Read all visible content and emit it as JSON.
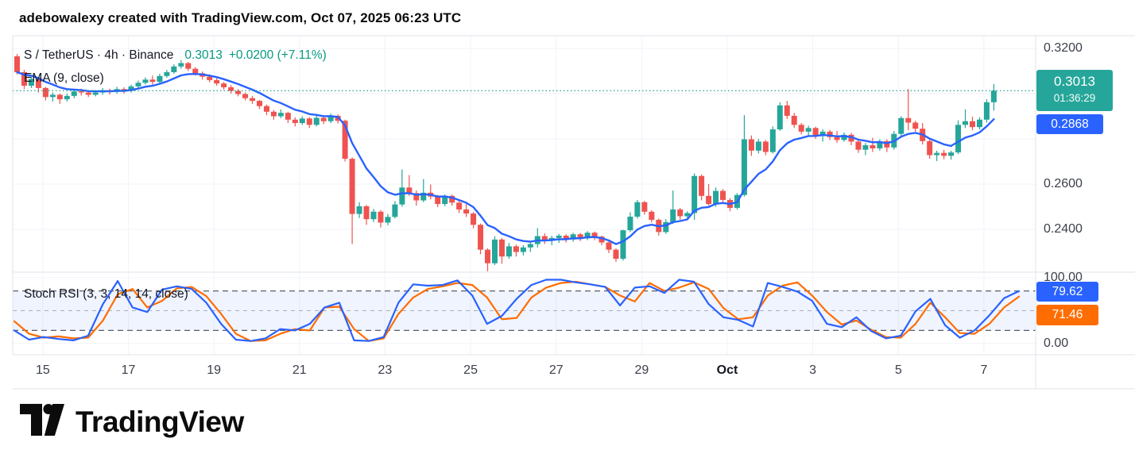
{
  "header": {
    "text": "adebowalexy created with TradingView.com, Oct 07, 2025 06:23 UTC"
  },
  "legend": {
    "symbol": "S / TetherUS · 4h · Binance",
    "last_price": "0.3013",
    "change": "+0.0200 (+7.11%)",
    "overlay_label": "EMA (9, close)"
  },
  "indicator_label": "Stoch RSI (3, 3, 14, 14, close)",
  "price_scale": {
    "ticks": [
      {
        "text": "0.3200",
        "value": 0.32
      },
      {
        "text": "0.2600",
        "value": 0.26
      },
      {
        "text": "0.2400",
        "value": 0.24
      }
    ],
    "price_badge": {
      "price": "0.3013",
      "countdown": "01:36:29",
      "color": "#26A69A"
    },
    "ema_badge": {
      "price": "0.2868",
      "color": "#2962FF"
    }
  },
  "stoch_scale": {
    "ticks": [
      {
        "text": "100.00",
        "value": 100
      },
      {
        "text": "0.00",
        "value": 0
      }
    ],
    "k_badge": {
      "value": "79.62",
      "color": "#2962FF"
    },
    "d_badge": {
      "value": "71.46",
      "color": "#FF6D00"
    }
  },
  "footer": {
    "brand": "TradingView"
  },
  "colors": {
    "up": "#26A69A",
    "down": "#EF5350",
    "ema": "#2962FF",
    "stoch_k": "#2962FF",
    "stoch_d": "#FF6D00",
    "grid": "#F0F3FA",
    "border": "#E0E3EB",
    "stoch_band": "rgba(41,98,255,0.07)",
    "dash_strong": "#5A5E69",
    "dash_mid": "#A9AEB8",
    "price_line": "#089981",
    "axis_text": "#3C404B"
  },
  "chart_data": {
    "type": "candlestick",
    "title": "S / TetherUS · 4h · Binance",
    "symbol": "S / TetherUS",
    "interval": "4h",
    "exchange": "Binance",
    "last_price": 0.3013,
    "change": 0.02,
    "change_pct": 7.11,
    "price_gridlines": [
      0.32,
      0.3,
      0.28,
      0.26,
      0.24
    ],
    "visible_price_range": [
      0.2215,
      0.326
    ],
    "time_ticks": [
      {
        "label": "15",
        "index": 4
      },
      {
        "label": "17",
        "index": 16
      },
      {
        "label": "19",
        "index": 28
      },
      {
        "label": "21",
        "index": 40
      },
      {
        "label": "23",
        "index": 52
      },
      {
        "label": "25",
        "index": 64
      },
      {
        "label": "27",
        "index": 76
      },
      {
        "label": "29",
        "index": 88
      },
      {
        "label": "Oct",
        "index": 100,
        "emphasis": true
      },
      {
        "label": "3",
        "index": 112
      },
      {
        "label": "5",
        "index": 124
      },
      {
        "label": "7",
        "index": 136
      }
    ],
    "candles": [
      [
        0.3165,
        0.3175,
        0.3085,
        0.3095
      ],
      [
        0.3095,
        0.3105,
        0.302,
        0.3035
      ],
      [
        0.3035,
        0.3075,
        0.3025,
        0.3065
      ],
      [
        0.3065,
        0.307,
        0.3005,
        0.3025
      ],
      [
        0.3025,
        0.303,
        0.297,
        0.2985
      ],
      [
        0.2985,
        0.3005,
        0.2965,
        0.2995
      ],
      [
        0.2995,
        0.3,
        0.2955,
        0.2975
      ],
      [
        0.2975,
        0.3,
        0.2965,
        0.299
      ],
      [
        0.299,
        0.302,
        0.298,
        0.301
      ],
      [
        0.301,
        0.3022,
        0.2992,
        0.3005
      ],
      [
        0.3005,
        0.3015,
        0.2985,
        0.2995
      ],
      [
        0.2995,
        0.3015,
        0.2988,
        0.3005
      ],
      [
        0.3005,
        0.3025,
        0.2995,
        0.3015
      ],
      [
        0.3015,
        0.3022,
        0.2996,
        0.3008
      ],
      [
        0.3008,
        0.303,
        0.3,
        0.302
      ],
      [
        0.302,
        0.3028,
        0.3,
        0.3012
      ],
      [
        0.3012,
        0.304,
        0.3005,
        0.3032
      ],
      [
        0.3032,
        0.3058,
        0.3025,
        0.3048
      ],
      [
        0.3048,
        0.3072,
        0.304,
        0.3062
      ],
      [
        0.3062,
        0.308,
        0.304,
        0.3052
      ],
      [
        0.3052,
        0.3088,
        0.3045,
        0.3078
      ],
      [
        0.3078,
        0.3105,
        0.307,
        0.3095
      ],
      [
        0.3095,
        0.313,
        0.3088,
        0.312
      ],
      [
        0.312,
        0.3148,
        0.311,
        0.3135
      ],
      [
        0.3135,
        0.314,
        0.31,
        0.311
      ],
      [
        0.311,
        0.3118,
        0.308,
        0.309
      ],
      [
        0.309,
        0.3098,
        0.3062,
        0.3075
      ],
      [
        0.3075,
        0.3085,
        0.305,
        0.306
      ],
      [
        0.306,
        0.3068,
        0.3035,
        0.3045
      ],
      [
        0.3045,
        0.3052,
        0.3018,
        0.3028
      ],
      [
        0.3028,
        0.3038,
        0.3,
        0.3012
      ],
      [
        0.3012,
        0.302,
        0.2988,
        0.2998
      ],
      [
        0.2998,
        0.3005,
        0.297,
        0.298
      ],
      [
        0.298,
        0.299,
        0.2955,
        0.2968
      ],
      [
        0.2968,
        0.2972,
        0.2932,
        0.2945
      ],
      [
        0.2945,
        0.2952,
        0.2905,
        0.292
      ],
      [
        0.292,
        0.2928,
        0.2885,
        0.29
      ],
      [
        0.29,
        0.293,
        0.2892,
        0.2915
      ],
      [
        0.2915,
        0.292,
        0.287,
        0.2885
      ],
      [
        0.2885,
        0.2895,
        0.2855,
        0.287
      ],
      [
        0.287,
        0.29,
        0.2862,
        0.289
      ],
      [
        0.289,
        0.2896,
        0.2848,
        0.2862
      ],
      [
        0.2862,
        0.2905,
        0.2855,
        0.2893
      ],
      [
        0.2893,
        0.29,
        0.2865,
        0.2878
      ],
      [
        0.2878,
        0.2912,
        0.287,
        0.2902
      ],
      [
        0.2902,
        0.2908,
        0.2868,
        0.288
      ],
      [
        0.288,
        0.2885,
        0.27,
        0.2712
      ],
      [
        0.2712,
        0.2718,
        0.2335,
        0.2468
      ],
      [
        0.2468,
        0.252,
        0.245,
        0.2502
      ],
      [
        0.2502,
        0.2508,
        0.242,
        0.2445
      ],
      [
        0.2445,
        0.249,
        0.2432,
        0.2478
      ],
      [
        0.2478,
        0.2485,
        0.2408,
        0.243
      ],
      [
        0.243,
        0.2468,
        0.2418,
        0.2455
      ],
      [
        0.2455,
        0.2525,
        0.2448,
        0.251
      ],
      [
        0.251,
        0.2665,
        0.25,
        0.2585
      ],
      [
        0.2585,
        0.264,
        0.2548,
        0.256
      ],
      [
        0.256,
        0.2572,
        0.2505,
        0.2528
      ],
      [
        0.2528,
        0.2622,
        0.252,
        0.2562
      ],
      [
        0.2562,
        0.2598,
        0.2532,
        0.2545
      ],
      [
        0.2545,
        0.2552,
        0.2498,
        0.2512
      ],
      [
        0.2512,
        0.2555,
        0.2502,
        0.2548
      ],
      [
        0.2548,
        0.2554,
        0.2505,
        0.2518
      ],
      [
        0.2518,
        0.2526,
        0.2472,
        0.2488
      ],
      [
        0.2488,
        0.2512,
        0.2455,
        0.247
      ],
      [
        0.247,
        0.2476,
        0.2405,
        0.242
      ],
      [
        0.242,
        0.2426,
        0.229,
        0.231
      ],
      [
        0.231,
        0.2316,
        0.2215,
        0.225
      ],
      [
        0.225,
        0.237,
        0.2242,
        0.2355
      ],
      [
        0.2355,
        0.2362,
        0.2248,
        0.228
      ],
      [
        0.228,
        0.234,
        0.227,
        0.2325
      ],
      [
        0.2325,
        0.2332,
        0.228,
        0.23
      ],
      [
        0.23,
        0.233,
        0.2285,
        0.232
      ],
      [
        0.232,
        0.2345,
        0.23,
        0.2335
      ],
      [
        0.2335,
        0.2405,
        0.232,
        0.237
      ],
      [
        0.237,
        0.2382,
        0.2335,
        0.235
      ],
      [
        0.235,
        0.2372,
        0.233,
        0.2362
      ],
      [
        0.2362,
        0.238,
        0.234,
        0.2372
      ],
      [
        0.2372,
        0.2378,
        0.2342,
        0.2355
      ],
      [
        0.2355,
        0.2385,
        0.2345,
        0.2378
      ],
      [
        0.2378,
        0.2384,
        0.2348,
        0.236
      ],
      [
        0.236,
        0.2392,
        0.2352,
        0.2385
      ],
      [
        0.2385,
        0.239,
        0.2352,
        0.2368
      ],
      [
        0.2368,
        0.2372,
        0.233,
        0.2342
      ],
      [
        0.2342,
        0.2348,
        0.2295,
        0.231
      ],
      [
        0.231,
        0.2316,
        0.2256,
        0.227
      ],
      [
        0.227,
        0.2398,
        0.2262,
        0.2396
      ],
      [
        0.2396,
        0.2475,
        0.2388,
        0.2456
      ],
      [
        0.2456,
        0.253,
        0.2448,
        0.252
      ],
      [
        0.252,
        0.2526,
        0.2465,
        0.2478
      ],
      [
        0.2478,
        0.2484,
        0.243,
        0.2442
      ],
      [
        0.2442,
        0.2448,
        0.2372,
        0.2388
      ],
      [
        0.2388,
        0.2445,
        0.238,
        0.2432
      ],
      [
        0.2432,
        0.2572,
        0.2424,
        0.2488
      ],
      [
        0.2488,
        0.2495,
        0.2442,
        0.2458
      ],
      [
        0.2458,
        0.248,
        0.245,
        0.2472
      ],
      [
        0.2472,
        0.2648,
        0.2442,
        0.2636
      ],
      [
        0.2636,
        0.2642,
        0.2528,
        0.2548
      ],
      [
        0.2548,
        0.26,
        0.2505,
        0.2512
      ],
      [
        0.2512,
        0.2585,
        0.25,
        0.257
      ],
      [
        0.257,
        0.2578,
        0.2512,
        0.253
      ],
      [
        0.253,
        0.2538,
        0.248,
        0.2495
      ],
      [
        0.2495,
        0.256,
        0.2488,
        0.2552
      ],
      [
        0.2552,
        0.2905,
        0.2545,
        0.2798
      ],
      [
        0.2798,
        0.2815,
        0.2725,
        0.2748
      ],
      [
        0.2748,
        0.28,
        0.2735,
        0.2788
      ],
      [
        0.2788,
        0.2795,
        0.2728,
        0.2742
      ],
      [
        0.2742,
        0.2855,
        0.2735,
        0.2842
      ],
      [
        0.2842,
        0.2962,
        0.2835,
        0.2948
      ],
      [
        0.2948,
        0.2968,
        0.2888,
        0.2902
      ],
      [
        0.2902,
        0.2915,
        0.2848,
        0.2862
      ],
      [
        0.2862,
        0.287,
        0.282,
        0.2832
      ],
      [
        0.2832,
        0.2858,
        0.2812,
        0.2848
      ],
      [
        0.2848,
        0.2854,
        0.28,
        0.2815
      ],
      [
        0.2815,
        0.2842,
        0.2788,
        0.2832
      ],
      [
        0.2832,
        0.284,
        0.2795,
        0.2808
      ],
      [
        0.2808,
        0.2835,
        0.2782,
        0.2795
      ],
      [
        0.2795,
        0.2828,
        0.2788,
        0.2818
      ],
      [
        0.2818,
        0.2826,
        0.2772,
        0.2788
      ],
      [
        0.2788,
        0.2795,
        0.2738,
        0.2752
      ],
      [
        0.2752,
        0.2782,
        0.2728,
        0.2772
      ],
      [
        0.2772,
        0.2805,
        0.2742,
        0.2758
      ],
      [
        0.2758,
        0.2798,
        0.2748,
        0.279
      ],
      [
        0.279,
        0.2798,
        0.2742,
        0.2762
      ],
      [
        0.2762,
        0.2835,
        0.2752,
        0.2822
      ],
      [
        0.2822,
        0.29,
        0.2812,
        0.2892
      ],
      [
        0.2892,
        0.302,
        0.2838,
        0.2872
      ],
      [
        0.2872,
        0.288,
        0.2832,
        0.2845
      ],
      [
        0.2845,
        0.287,
        0.2775,
        0.279
      ],
      [
        0.279,
        0.2798,
        0.2712,
        0.2728
      ],
      [
        0.2728,
        0.2748,
        0.2702,
        0.2738
      ],
      [
        0.2738,
        0.2752,
        0.271,
        0.2725
      ],
      [
        0.2725,
        0.2748,
        0.2708,
        0.274
      ],
      [
        0.274,
        0.2882,
        0.2732,
        0.2862
      ],
      [
        0.2862,
        0.293,
        0.2848,
        0.2878
      ],
      [
        0.2878,
        0.2898,
        0.2838,
        0.2852
      ],
      [
        0.2852,
        0.2895,
        0.2842,
        0.2885
      ],
      [
        0.2885,
        0.2975,
        0.2872,
        0.2962
      ],
      [
        0.2962,
        0.3042,
        0.2925,
        0.3013
      ]
    ],
    "overlays": [
      {
        "name": "EMA",
        "params": "9, close",
        "color": "#2962FF",
        "last": 0.2868
      }
    ],
    "indicator": {
      "name": "Stoch RSI",
      "params": "3, 3, 14, 14, close",
      "range": [
        0,
        100
      ],
      "bands": [
        80,
        50,
        20
      ],
      "sample_step": 2,
      "k": {
        "name": "%K",
        "color": "#2962FF",
        "last": 79.62,
        "values": [
          20,
          6,
          10,
          7,
          5,
          12,
          60,
          95,
          55,
          48,
          82,
          87,
          83,
          62,
          30,
          6,
          4,
          8,
          22,
          20,
          30,
          55,
          62,
          5,
          4,
          10,
          62,
          90,
          88,
          89,
          96,
          73,
          30,
          42,
          68,
          89,
          97,
          97,
          93,
          90,
          86,
          58,
          85,
          87,
          77,
          97,
          94,
          60,
          40,
          36,
          26,
          92,
          86,
          79,
          65,
          30,
          25,
          40,
          19,
          8,
          12,
          49,
          68,
          28,
          9,
          20,
          43,
          69,
          79.62
        ]
      },
      "d": {
        "name": "%D",
        "color": "#FF6D00",
        "last": 71.46,
        "values": [
          34,
          15,
          9,
          11,
          8,
          9,
          35,
          75,
          83,
          55,
          65,
          84,
          86,
          72,
          45,
          15,
          4,
          5,
          15,
          22,
          20,
          55,
          56,
          22,
          4,
          8,
          45,
          70,
          83,
          87,
          92,
          89,
          70,
          37,
          39,
          70,
          85,
          92,
          94,
          90,
          86,
          73,
          64,
          92,
          80,
          85,
          93,
          83,
          54,
          37,
          40,
          73,
          88,
          93,
          73,
          48,
          29,
          35,
          21,
          10,
          9,
          30,
          62,
          40,
          16,
          15,
          30,
          55,
          71.46
        ]
      }
    }
  }
}
